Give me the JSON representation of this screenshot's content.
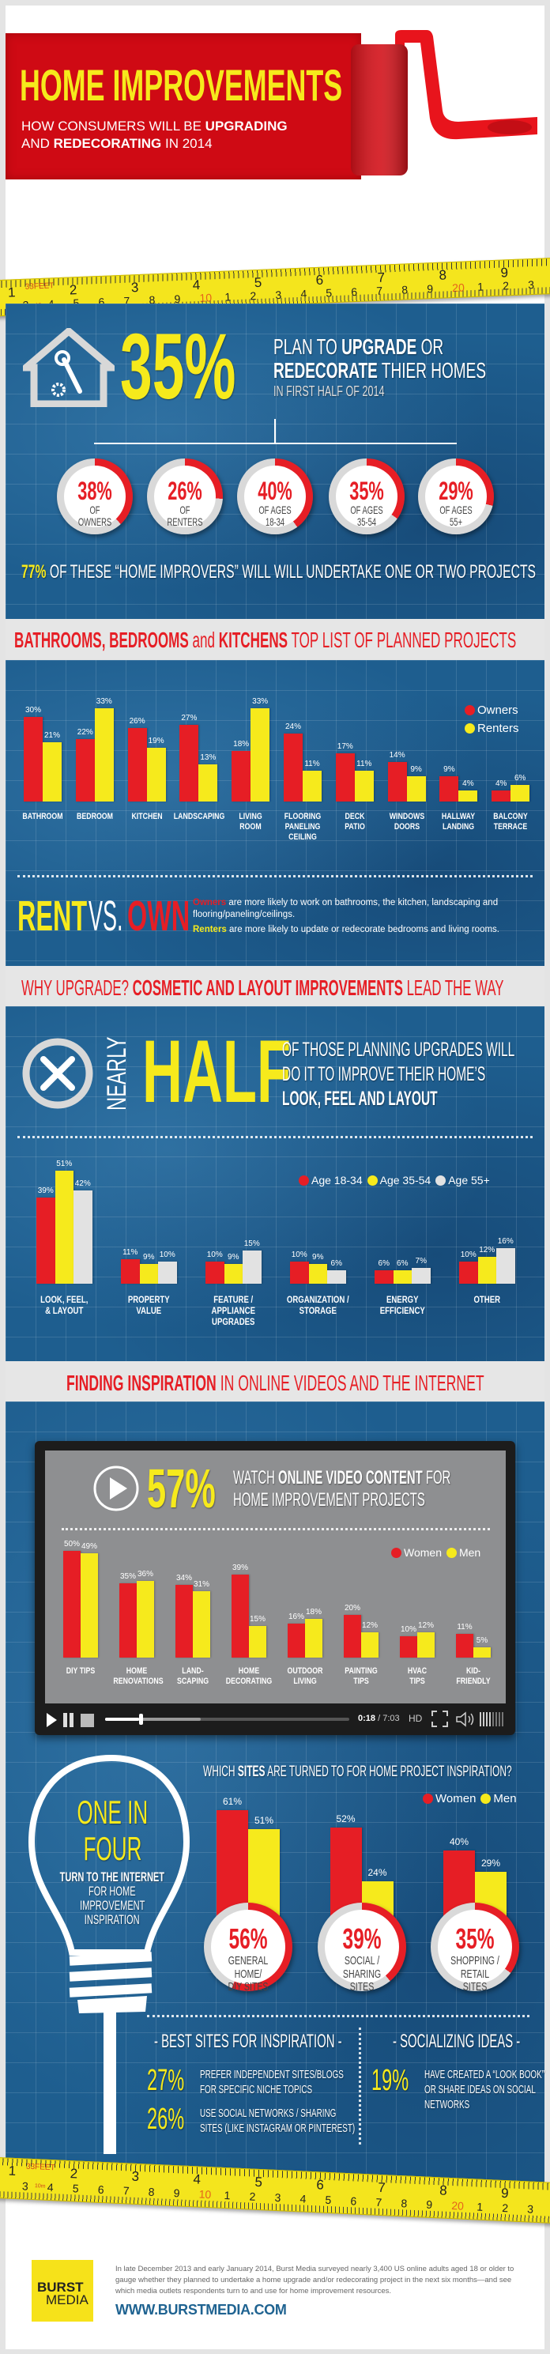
{
  "colors": {
    "red": "#e61e25",
    "yellow": "#f6ea1c",
    "light_gray": "#e6e6e6",
    "blue": "#1e5e8f"
  },
  "header": {
    "title": "HOME IMPROVEMENTS",
    "sub1_a": "HOW CONSUMERS WILL BE ",
    "sub1_b": "UPGRADING",
    "sub2_a": "AND ",
    "sub2_b": "REDECORATING",
    "sub2_c": " IN 2014"
  },
  "tape": {
    "brand": "33FEET",
    "metric": "10m",
    "top": [
      "1",
      "2",
      "3",
      "4",
      "5",
      "6",
      "7",
      "8",
      "9"
    ],
    "bottom": [
      "3",
      "4",
      "5",
      "6",
      "7",
      "8",
      "9",
      "10",
      "1",
      "2",
      "3",
      "4",
      "5",
      "6",
      "7",
      "8",
      "9",
      "20",
      "1",
      "2",
      "3"
    ]
  },
  "plan": {
    "big": "35%",
    "l1_a": "PLAN TO ",
    "l1_b": "UPGRADE",
    "l1_c": " OR",
    "l2_a": "REDECORATE",
    "l2_b": " THIER HOMES",
    "l3": "IN FIRST HALF OF 2014",
    "circles": [
      {
        "pct": 38,
        "value": "38%",
        "label": "OF OWNERS"
      },
      {
        "pct": 26,
        "value": "26%",
        "label": "OF RENTERS"
      },
      {
        "pct": 40,
        "value": "40%",
        "label": "OF AGES\n18-34"
      },
      {
        "pct": 35,
        "value": "35%",
        "label": "OF AGES\n35-54"
      },
      {
        "pct": 29,
        "value": "29%",
        "label": "OF AGES\n55+"
      }
    ],
    "footer_pct": "77%",
    "footer_text": " OF THESE “HOME IMPROVERS” WILL WILL UNDERTAKE ONE OR TWO PROJECTS"
  },
  "projects": {
    "t_a": "BATHROOMS, BEDROOMS",
    "t_b": " and ",
    "t_c": "KITCHENS",
    "t_d": " TOP LIST OF PLANNED PROJECTS",
    "rent": "RENT",
    "vs": "VS.",
    "own": "OWN",
    "owners_word": "Owners",
    "owners_text": " are more likely to work on bathrooms, the kitchen, landscaping and flooring/paneling/ceilings.",
    "renters_word": "Renters",
    "renters_text": " are more likely to update or redecorate bedrooms and living rooms."
  },
  "why": {
    "t_a": "WHY UPGRADE? ",
    "t_b": "COSMETIC AND LAYOUT IMPROVEMENTS",
    "t_c": " LEAD THE WAY",
    "nearly": "NEARLY",
    "half": "HALF",
    "l1": "OF THOSE PLANNING UPGRADES WILL",
    "l2": "DO IT TO IMPROVE THEIR HOME’S",
    "l3": "LOOK, FEEL AND LAYOUT"
  },
  "inspiration": {
    "t_a": "FINDING INSPIRATION",
    "t_b": " IN ONLINE VIDEOS AND THE INTERNET",
    "big": "57%",
    "l1_a": "WATCH ",
    "l1_b": "ONLINE VIDEO CONTENT",
    "l1_c": " FOR",
    "l2": "HOME IMPROVEMENT  PROJECTS",
    "player": {
      "time_current": "0:18",
      "time_total": "/ 7:03",
      "hd": "HD",
      "progress": 0.14,
      "buffered": 0.39
    },
    "sites_q_a": "WHICH ",
    "sites_q_b": "SITES",
    "sites_q_c": " ARE TURNED TO FOR HOME PROJECT INSPIRATION?",
    "bulb": {
      "a": "ONE IN",
      "b": "FOUR",
      "c": "TURN TO THE INTERNET",
      "d": "FOR HOME",
      "e": "IMPROVEMENT",
      "f": "INSPIRATION"
    },
    "best_title": "- BEST SITES FOR INSPIRATION -",
    "best": [
      {
        "pct": "27%",
        "text": "PREFER INDEPENDENT SITES/BLOGS\nFOR SPECIFIC NICHE TOPICS"
      },
      {
        "pct": "26%",
        "text": "USE SOCIAL NETWORKS / SHARING\nSITES (LIKE INSTAGRAM OR PINTEREST)"
      }
    ],
    "social_title": "- SOCIALIZING IDEAS -",
    "social": {
      "pct": "19%",
      "text": "HAVE CREATED A “LOOK BOOK”\nOR SHARE IDEAS ON SOCIAL\nNETWORKS"
    }
  },
  "footer": {
    "logo_a": "BURST",
    "logo_b": "MEDIA",
    "text": "In late December 2013 and early January 2014, Burst Media surveyed nearly 3,400 US online adults aged 18 or older to gauge whether they planned to undertake a home upgrade and/or redecorating project in the next six months—and see which media outlets respondents turn to and use for home improvement resources.",
    "url": "WWW.BURSTMEDIA.COM"
  },
  "chart_data": [
    {
      "type": "bar",
      "categories": [
        "BATHROOM",
        "BEDROOM",
        "KITCHEN",
        "LANDSCAPING",
        "LIVING\nROOM",
        "FLOORING\nPANELING\nCEILING",
        "DECK\nPATIO",
        "WINDOWS\nDOORS",
        "HALLWAY\nLANDING",
        "BALCONY\nTERRACE"
      ],
      "series": [
        {
          "name": "Owners",
          "color": "#e61e25",
          "values": [
            30,
            22,
            26,
            27,
            18,
            24,
            17,
            14,
            9,
            4
          ]
        },
        {
          "name": "Renters",
          "color": "#f6ea1c",
          "values": [
            21,
            33,
            19,
            13,
            33,
            11,
            11,
            9,
            4,
            6
          ]
        }
      ],
      "unit": "%",
      "legend": "top-right",
      "grid": false
    },
    {
      "type": "bar",
      "categories": [
        "LOOK, FEEL,\n& LAYOUT",
        "PROPERTY\nVALUE",
        "FEATURE /\nAPPLIANCE\nUPGRADES",
        "ORGANIZATION /\nSTORAGE",
        "ENERGY\nEFFICIENCY",
        "OTHER"
      ],
      "series": [
        {
          "name": "Age 18-34",
          "color": "#e61e25",
          "values": [
            39,
            11,
            10,
            10,
            6,
            10
          ]
        },
        {
          "name": "Age 35-54",
          "color": "#f6ea1c",
          "values": [
            51,
            9,
            9,
            9,
            6,
            12
          ]
        },
        {
          "name": "Age 55+",
          "color": "#e2e2e2",
          "values": [
            42,
            10,
            15,
            6,
            7,
            16
          ]
        }
      ],
      "unit": "%",
      "legend": "top-right",
      "grid": false
    },
    {
      "type": "bar",
      "categories": [
        "DIY TIPS",
        "HOME\nRENOVATIONS",
        "LAND-\nSCAPING",
        "HOME\nDECORATING",
        "OUTDOOR\nLIVING",
        "PAINTING\nTIPS",
        "HVAC\nTIPS",
        "KID-\nFRIENDLY"
      ],
      "series": [
        {
          "name": "Women",
          "color": "#e61e25",
          "values": [
            50,
            35,
            34,
            39,
            16,
            20,
            10,
            11
          ]
        },
        {
          "name": "Men",
          "color": "#f6ea1c",
          "values": [
            49,
            36,
            31,
            15,
            18,
            12,
            12,
            5
          ]
        }
      ],
      "unit": "%",
      "legend": "top-right",
      "grid": false
    },
    {
      "type": "bar",
      "categories": [
        "GENERAL HOME/\nDIY SITES",
        "SOCIAL /\nSHARING SITES",
        "SHOPPING /\nRETAIL SITES"
      ],
      "series": [
        {
          "name": "Women",
          "color": "#e61e25",
          "values": [
            61,
            52,
            40
          ]
        },
        {
          "name": "Men",
          "color": "#f6ea1c",
          "values": [
            51,
            24,
            29
          ]
        }
      ],
      "overall": [
        56,
        39,
        35
      ],
      "unit": "%",
      "legend": "top-right",
      "grid": false
    }
  ]
}
